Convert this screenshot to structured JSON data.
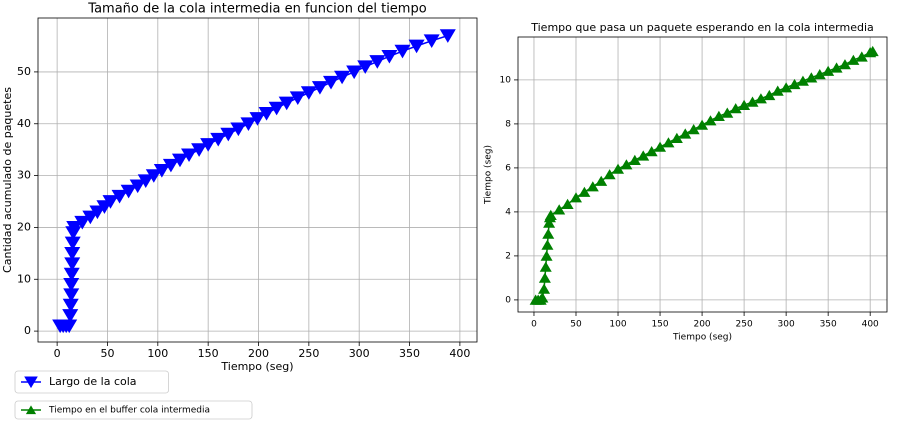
{
  "chart_data": [
    {
      "type": "line",
      "title": "Tamaño de la cola intermedia en funcion del tiempo",
      "x_label": "Tiempo (seg)",
      "y_label": "Cantidad acumulado de paquetes",
      "x": [
        3,
        6,
        9,
        12,
        13,
        13.5,
        14,
        14,
        14.5,
        15,
        15,
        15.5,
        16,
        17,
        25,
        33,
        40,
        47,
        53,
        62,
        71,
        80,
        88,
        96,
        104,
        113,
        122,
        131,
        141,
        150,
        160,
        170,
        180,
        190,
        199,
        208,
        218,
        228,
        239,
        250,
        261,
        272,
        283,
        295,
        306,
        318,
        330,
        343,
        357,
        372,
        388
      ],
      "series": [
        {
          "name": "Largo de la cola",
          "color": "#0000ff",
          "marker": "triangle-down",
          "values": [
            1,
            1,
            1,
            1,
            3,
            5,
            7,
            9,
            11,
            13,
            15,
            17,
            19,
            20,
            21,
            22,
            23,
            24,
            25,
            26,
            27,
            28,
            29,
            30,
            31,
            32,
            33,
            34,
            35,
            36,
            37,
            38,
            39,
            40,
            41,
            42,
            43,
            44,
            45,
            46,
            47,
            48,
            49,
            50,
            51,
            52,
            53,
            54,
            55,
            56,
            57
          ]
        }
      ],
      "xlim": [
        -19,
        417
      ],
      "ylim": [
        -2.1,
        60.4
      ],
      "xticks": [
        0,
        50,
        100,
        150,
        200,
        250,
        300,
        350,
        400
      ],
      "yticks": [
        0,
        10,
        20,
        30,
        40,
        50
      ],
      "grid": true
    },
    {
      "type": "line",
      "title": "Tiempo que pasa un paquete esperando en la cola intermedia",
      "x_label": "Tiempo (seg)",
      "y_label": "Tiempo (seg)",
      "x": [
        2,
        5,
        8,
        10,
        12,
        13,
        14,
        15,
        16,
        17,
        18,
        19,
        20,
        30,
        40,
        50,
        60,
        70,
        80,
        90,
        100,
        110,
        120,
        130,
        140,
        150,
        160,
        170,
        180,
        190,
        200,
        210,
        220,
        230,
        240,
        250,
        260,
        270,
        280,
        290,
        300,
        310,
        320,
        330,
        340,
        350,
        360,
        370,
        380,
        390,
        400,
        403
      ],
      "series": [
        {
          "name": "Tiempo en el buffer cola intermedia",
          "color": "#008000",
          "marker": "triangle-up",
          "values": [
            0,
            0,
            0,
            0.1,
            0.5,
            1,
            1.5,
            2,
            2.5,
            3,
            3.5,
            3.75,
            3.85,
            4.1,
            4.35,
            4.65,
            4.9,
            5.15,
            5.4,
            5.7,
            5.95,
            6.15,
            6.35,
            6.55,
            6.75,
            6.95,
            7.15,
            7.35,
            7.55,
            7.75,
            7.95,
            8.15,
            8.35,
            8.5,
            8.7,
            8.85,
            9.0,
            9.15,
            9.3,
            9.5,
            9.65,
            9.8,
            9.95,
            10.1,
            10.25,
            10.4,
            10.55,
            10.7,
            10.9,
            11.05,
            11.25,
            11.3
          ]
        }
      ],
      "xlim": [
        -19,
        420
      ],
      "ylim": [
        -0.55,
        11.95
      ],
      "xticks": [
        0,
        50,
        100,
        150,
        200,
        250,
        300,
        350,
        400
      ],
      "yticks": [
        0,
        2,
        4,
        6,
        8,
        10
      ],
      "grid": true
    }
  ]
}
